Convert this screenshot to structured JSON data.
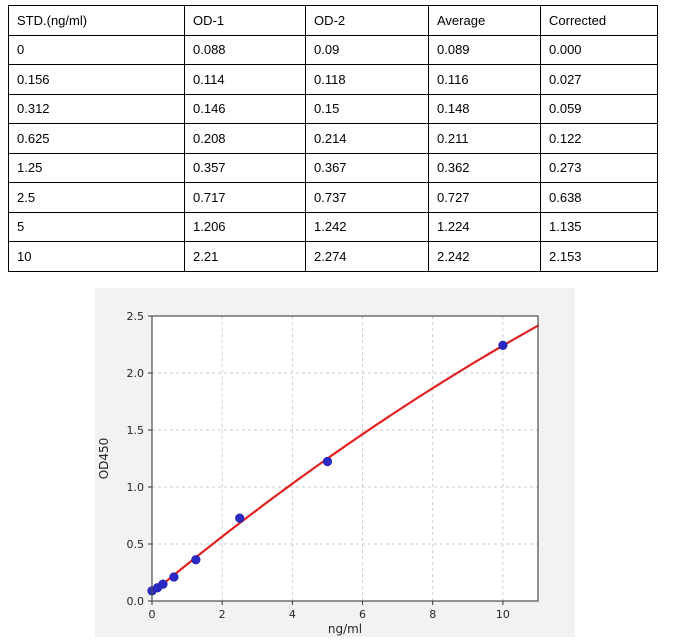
{
  "standards_table": {
    "headers": [
      "STD.(ng/ml)",
      "OD-1",
      "OD-2",
      "Average",
      "Corrected"
    ],
    "rows": [
      [
        "0",
        "0.088",
        "0.09",
        "0.089",
        "0.000"
      ],
      [
        "0.156",
        "0.114",
        "0.118",
        "0.116",
        "0.027"
      ],
      [
        "0.312",
        "0.146",
        "0.15",
        "0.148",
        "0.059"
      ],
      [
        "0.625",
        "0.208",
        "0.214",
        "0.211",
        "0.122"
      ],
      [
        "1.25",
        "0.357",
        "0.367",
        "0.362",
        "0.273"
      ],
      [
        "2.5",
        "0.717",
        "0.737",
        "0.727",
        "0.638"
      ],
      [
        "5",
        "1.206",
        "1.242",
        "1.224",
        "1.135"
      ],
      [
        "10",
        "2.21",
        "2.274",
        "2.242",
        "2.153"
      ]
    ]
  },
  "chart_data": {
    "type": "scatter",
    "title": "",
    "xlabel": "ng/ml",
    "ylabel": "OD450",
    "x": [
      0,
      0.156,
      0.312,
      0.625,
      1.25,
      2.5,
      5,
      10
    ],
    "y": [
      0.089,
      0.116,
      0.148,
      0.211,
      0.362,
      0.727,
      1.224,
      2.242
    ],
    "xlim": [
      0,
      11
    ],
    "ylim": [
      0,
      2.5
    ],
    "x_ticks": [
      0,
      2,
      4,
      6,
      8,
      10
    ],
    "y_ticks": [
      0.0,
      0.5,
      1.0,
      1.5,
      2.0,
      2.5
    ],
    "grid": true,
    "legend": "none",
    "fit_curve": {
      "type": "quadratic",
      "coefficients": [
        0.07,
        0.255,
        -0.0038
      ],
      "x_range": [
        0,
        11
      ]
    },
    "colors": {
      "point": "#2c2ac4",
      "point_edge": "#1d1b9e",
      "curve": "#e02222",
      "grid": "#c9c9c9",
      "spine": "#4d4d4d",
      "figure_background": "#f2f2f2",
      "plot_background": "#ffffff",
      "tick_text": "#262626"
    }
  }
}
